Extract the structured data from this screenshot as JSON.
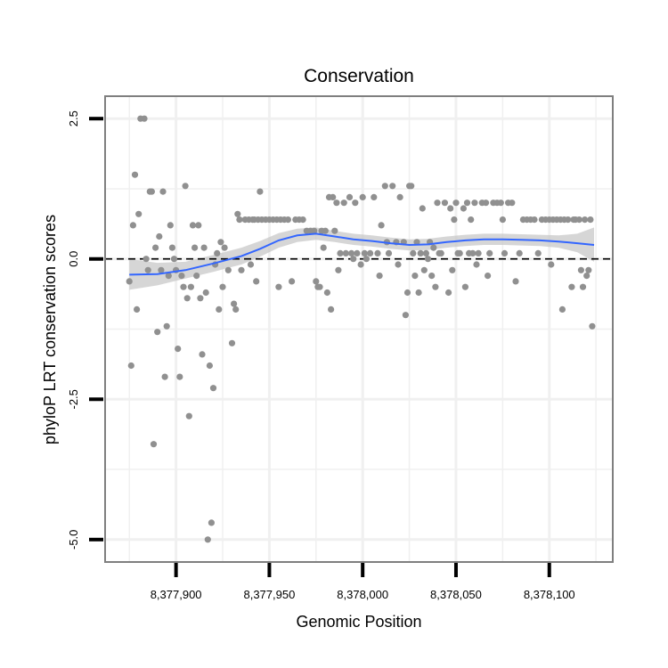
{
  "chart_data": {
    "type": "scatter",
    "title": "Conservation",
    "xlabel": "Genomic Position",
    "ylabel": "phyloP LRT conservation scores",
    "xlim": [
      8377862,
      8378134
    ],
    "ylim": [
      -5.4,
      2.9
    ],
    "x_ticks": [
      8377900,
      8377950,
      8378000,
      8378050,
      8378100
    ],
    "x_tick_labels": [
      "8,377,900",
      "8,377,950",
      "8,378,000",
      "8,378,050",
      "8,378,100"
    ],
    "y_ticks": [
      2.5,
      0,
      -2.5,
      -5
    ],
    "y_tick_labels": [
      "2.5",
      "0.0",
      "-2.5",
      "-5.0"
    ],
    "reference_line_y": 0,
    "colors": {
      "points": "#909090",
      "smooth": "#3366ff",
      "band": "#c8c8c8",
      "grid": "#f0f0f0",
      "border": "#7f7f7f"
    },
    "points": [
      [
        8377875,
        -0.4
      ],
      [
        8377876,
        -1.9
      ],
      [
        8377877,
        0.6
      ],
      [
        8377878,
        1.5
      ],
      [
        8377879,
        -0.9
      ],
      [
        8377880,
        0.8
      ],
      [
        8377881,
        2.5
      ],
      [
        8377883,
        2.5
      ],
      [
        8377884,
        0.0
      ],
      [
        8377885,
        -0.2
      ],
      [
        8377886,
        1.2
      ],
      [
        8377887,
        1.2
      ],
      [
        8377888,
        -3.3
      ],
      [
        8377889,
        0.2
      ],
      [
        8377890,
        -1.3
      ],
      [
        8377891,
        0.4
      ],
      [
        8377892,
        -0.2
      ],
      [
        8377893,
        1.2
      ],
      [
        8377894,
        -2.1
      ],
      [
        8377895,
        -1.2
      ],
      [
        8377896,
        -0.3
      ],
      [
        8377897,
        0.6
      ],
      [
        8377898,
        0.2
      ],
      [
        8377899,
        0.0
      ],
      [
        8377900,
        -0.2
      ],
      [
        8377901,
        -1.6
      ],
      [
        8377902,
        -2.1
      ],
      [
        8377903,
        -0.3
      ],
      [
        8377904,
        -0.5
      ],
      [
        8377905,
        1.3
      ],
      [
        8377906,
        -0.7
      ],
      [
        8377907,
        -2.8
      ],
      [
        8377908,
        -0.5
      ],
      [
        8377909,
        0.6
      ],
      [
        8377910,
        0.2
      ],
      [
        8377911,
        -0.3
      ],
      [
        8377912,
        0.6
      ],
      [
        8377913,
        -0.7
      ],
      [
        8377914,
        -1.7
      ],
      [
        8377915,
        0.2
      ],
      [
        8377916,
        -0.6
      ],
      [
        8377917,
        -5.0
      ],
      [
        8377918,
        -1.9
      ],
      [
        8377919,
        -4.7
      ],
      [
        8377920,
        -2.3
      ],
      [
        8377921,
        -0.1
      ],
      [
        8377922,
        0.1
      ],
      [
        8377923,
        -0.9
      ],
      [
        8377924,
        0.3
      ],
      [
        8377925,
        -0.5
      ],
      [
        8377926,
        0.2
      ],
      [
        8377928,
        -0.2
      ],
      [
        8377930,
        -1.5
      ],
      [
        8377931,
        -0.8
      ],
      [
        8377932,
        -0.9
      ],
      [
        8377933,
        0.8
      ],
      [
        8377934,
        0.7
      ],
      [
        8377935,
        -0.2
      ],
      [
        8377937,
        0.7
      ],
      [
        8377939,
        0.7
      ],
      [
        8377940,
        -0.1
      ],
      [
        8377941,
        0.7
      ],
      [
        8377942,
        0.7
      ],
      [
        8377943,
        -0.4
      ],
      [
        8377944,
        0.7
      ],
      [
        8377945,
        1.2
      ],
      [
        8377946,
        0.7
      ],
      [
        8377948,
        0.7
      ],
      [
        8377950,
        0.7
      ],
      [
        8377952,
        0.7
      ],
      [
        8377954,
        0.7
      ],
      [
        8377955,
        -0.5
      ],
      [
        8377956,
        0.7
      ],
      [
        8377958,
        0.7
      ],
      [
        8377960,
        0.7
      ],
      [
        8377962,
        -0.4
      ],
      [
        8377964,
        0.7
      ],
      [
        8377966,
        0.7
      ],
      [
        8377968,
        0.7
      ],
      [
        8377970,
        0.5
      ],
      [
        8377972,
        0.5
      ],
      [
        8377974,
        0.5
      ],
      [
        8377975,
        -0.4
      ],
      [
        8377976,
        -0.5
      ],
      [
        8377977,
        -0.5
      ],
      [
        8377978,
        0.5
      ],
      [
        8377979,
        0.2
      ],
      [
        8377980,
        0.5
      ],
      [
        8377981,
        -0.6
      ],
      [
        8377982,
        1.1
      ],
      [
        8377983,
        -0.9
      ],
      [
        8377984,
        1.1
      ],
      [
        8377985,
        0.5
      ],
      [
        8377986,
        1.0
      ],
      [
        8377987,
        -0.2
      ],
      [
        8377988,
        0.1
      ],
      [
        8377990,
        1.0
      ],
      [
        8377991,
        0.1
      ],
      [
        8377993,
        1.1
      ],
      [
        8377994,
        0.1
      ],
      [
        8377995,
        0.0
      ],
      [
        8377996,
        1.0
      ],
      [
        8377997,
        0.1
      ],
      [
        8377999,
        -0.1
      ],
      [
        8378000,
        1.1
      ],
      [
        8378001,
        0.1
      ],
      [
        8378002,
        0.0
      ],
      [
        8378004,
        0.1
      ],
      [
        8378006,
        1.1
      ],
      [
        8378008,
        0.1
      ],
      [
        8378009,
        -0.3
      ],
      [
        8378010,
        0.6
      ],
      [
        8378012,
        1.3
      ],
      [
        8378013,
        0.3
      ],
      [
        8378014,
        0.1
      ],
      [
        8378016,
        1.3
      ],
      [
        8378018,
        0.3
      ],
      [
        8378019,
        -0.1
      ],
      [
        8378020,
        1.1
      ],
      [
        8378022,
        0.3
      ],
      [
        8378023,
        -1.0
      ],
      [
        8378024,
        -0.6
      ],
      [
        8378025,
        1.3
      ],
      [
        8378026,
        1.3
      ],
      [
        8378027,
        0.1
      ],
      [
        8378028,
        -0.3
      ],
      [
        8378029,
        0.3
      ],
      [
        8378030,
        -0.6
      ],
      [
        8378031,
        0.1
      ],
      [
        8378032,
        0.9
      ],
      [
        8378033,
        -0.2
      ],
      [
        8378034,
        0.1
      ],
      [
        8378035,
        0.0
      ],
      [
        8378036,
        0.3
      ],
      [
        8378037,
        -0.3
      ],
      [
        8378038,
        0.2
      ],
      [
        8378039,
        -0.5
      ],
      [
        8378040,
        1.0
      ],
      [
        8378041,
        0.1
      ],
      [
        8378042,
        0.1
      ],
      [
        8378044,
        1.0
      ],
      [
        8378046,
        -0.6
      ],
      [
        8378047,
        0.9
      ],
      [
        8378048,
        -0.2
      ],
      [
        8378049,
        0.7
      ],
      [
        8378050,
        1.0
      ],
      [
        8378051,
        0.1
      ],
      [
        8378052,
        0.1
      ],
      [
        8378054,
        0.9
      ],
      [
        8378055,
        -0.5
      ],
      [
        8378056,
        1.0
      ],
      [
        8378057,
        0.1
      ],
      [
        8378058,
        0.7
      ],
      [
        8378059,
        0.1
      ],
      [
        8378060,
        1.0
      ],
      [
        8378061,
        -0.1
      ],
      [
        8378062,
        0.1
      ],
      [
        8378064,
        1.0
      ],
      [
        8378066,
        1.0
      ],
      [
        8378067,
        -0.3
      ],
      [
        8378068,
        0.1
      ],
      [
        8378070,
        1.0
      ],
      [
        8378072,
        1.0
      ],
      [
        8378074,
        1.0
      ],
      [
        8378075,
        0.7
      ],
      [
        8378076,
        0.1
      ],
      [
        8378078,
        1.0
      ],
      [
        8378080,
        1.0
      ],
      [
        8378082,
        -0.4
      ],
      [
        8378084,
        0.1
      ],
      [
        8378086,
        0.7
      ],
      [
        8378088,
        0.7
      ],
      [
        8378090,
        0.7
      ],
      [
        8378092,
        0.7
      ],
      [
        8378094,
        0.1
      ],
      [
        8378096,
        0.7
      ],
      [
        8378098,
        0.7
      ],
      [
        8378100,
        0.7
      ],
      [
        8378101,
        -0.1
      ],
      [
        8378102,
        0.7
      ],
      [
        8378104,
        0.7
      ],
      [
        8378106,
        0.7
      ],
      [
        8378107,
        -0.9
      ],
      [
        8378108,
        0.7
      ],
      [
        8378110,
        0.7
      ],
      [
        8378112,
        -0.5
      ],
      [
        8378113,
        0.7
      ],
      [
        8378114,
        0.7
      ],
      [
        8378116,
        0.7
      ],
      [
        8378117,
        -0.2
      ],
      [
        8378118,
        -0.5
      ],
      [
        8378119,
        0.7
      ],
      [
        8378120,
        -0.3
      ],
      [
        8378121,
        -0.2
      ],
      [
        8378122,
        0.7
      ],
      [
        8378123,
        -1.2
      ]
    ],
    "smooth": {
      "x": [
        8377875,
        8377890,
        8377905,
        8377920,
        8377935,
        8377945,
        8377955,
        8377965,
        8377975,
        8377985,
        8377995,
        8378005,
        8378015,
        8378025,
        8378035,
        8378045,
        8378055,
        8378065,
        8378075,
        8378085,
        8378095,
        8378105,
        8378115,
        8378124
      ],
      "y": [
        -0.28,
        -0.27,
        -0.2,
        -0.08,
        0.05,
        0.18,
        0.33,
        0.42,
        0.45,
        0.4,
        0.35,
        0.32,
        0.28,
        0.25,
        0.26,
        0.3,
        0.33,
        0.35,
        0.35,
        0.34,
        0.33,
        0.31,
        0.28,
        0.25
      ],
      "lower": [
        -0.55,
        -0.47,
        -0.35,
        -0.23,
        -0.1,
        0.04,
        0.2,
        0.3,
        0.34,
        0.3,
        0.25,
        0.22,
        0.18,
        0.15,
        0.16,
        0.2,
        0.23,
        0.25,
        0.25,
        0.24,
        0.23,
        0.2,
        0.12,
        -0.05
      ],
      "upper": [
        0.0,
        -0.07,
        -0.05,
        0.07,
        0.2,
        0.32,
        0.46,
        0.54,
        0.56,
        0.5,
        0.45,
        0.42,
        0.38,
        0.35,
        0.36,
        0.4,
        0.43,
        0.45,
        0.45,
        0.44,
        0.43,
        0.42,
        0.45,
        0.56
      ]
    }
  }
}
